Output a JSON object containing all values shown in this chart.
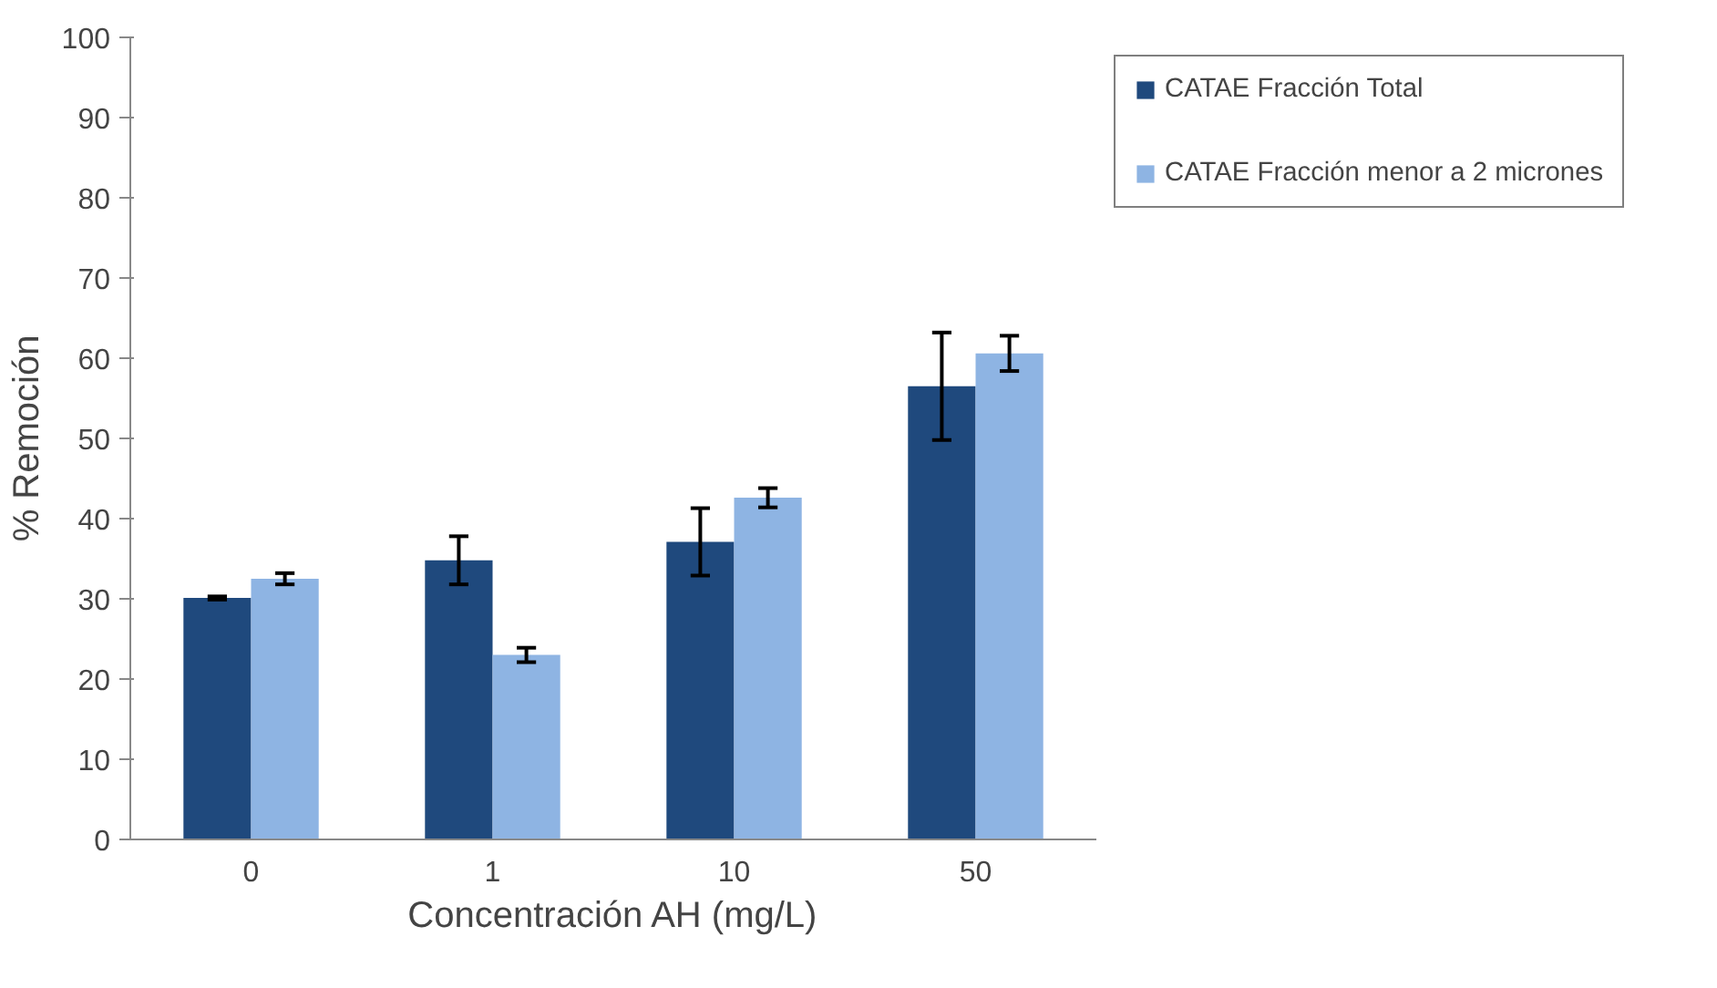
{
  "chart_data": {
    "type": "bar",
    "xlabel": "Concentración AH (mg/L)",
    "ylabel": "% Remoción",
    "categories": [
      "0",
      "1",
      "10",
      "50"
    ],
    "series": [
      {
        "name": "CATAE Fracción Total",
        "color": "#1f497d",
        "values": [
          30.1,
          34.8,
          37.1,
          56.5
        ],
        "errors": [
          0.2,
          3,
          4.2,
          6.7
        ]
      },
      {
        "name": "CATAE Fracción menor a 2 micrones",
        "color": "#8eb4e3",
        "values": [
          32.5,
          23.0,
          42.6,
          60.6
        ],
        "errors": [
          0.7,
          0.9,
          1.2,
          2.2
        ]
      }
    ],
    "ylim": [
      0,
      100
    ],
    "yticks": [
      0,
      10,
      20,
      30,
      40,
      50,
      60,
      70,
      80,
      90,
      100
    ],
    "grid": false,
    "legend": "top right"
  }
}
